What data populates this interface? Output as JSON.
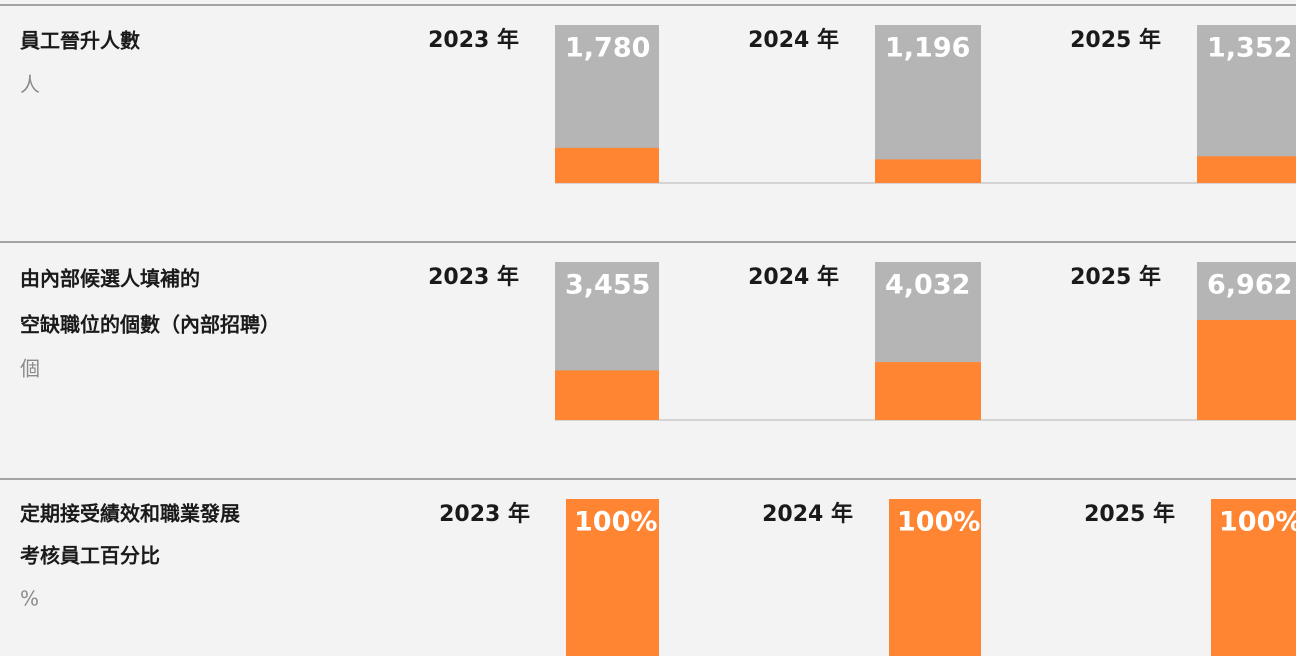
{
  "chart_data": [
    {
      "type": "bar",
      "title": [
        "員工晉升人數"
      ],
      "unit": "人",
      "categories": [
        "2023 年",
        "2024 年",
        "2025 年"
      ],
      "values": [
        1780,
        1196,
        1352
      ],
      "value_labels": [
        "1,780",
        "1,196",
        "1,352"
      ],
      "ylim": [
        0,
        8000
      ],
      "color": "#ff8533",
      "track_color": "#b4b5b4"
    },
    {
      "type": "bar",
      "title": [
        "由內部候選人填補的",
        "空缺職位的個數（內部招聘）"
      ],
      "unit": "個",
      "categories": [
        "2023 年",
        "2024 年",
        "2025 年"
      ],
      "values": [
        3455,
        4032,
        6962
      ],
      "value_labels": [
        "3,455",
        "4,032",
        "6,962"
      ],
      "ylim": [
        0,
        11000
      ],
      "color": "#ff8533",
      "track_color": "#b4b5b4"
    },
    {
      "type": "bar",
      "title": [
        "定期接受績效和職業發展",
        "考核員工百分比"
      ],
      "unit": "%",
      "categories": [
        "2023 年",
        "2024 年",
        "2025 年"
      ],
      "values": [
        100,
        100,
        100
      ],
      "value_labels": [
        "100%",
        "100%",
        "100%"
      ],
      "ylim": [
        0,
        100
      ],
      "color": "#ff8533",
      "track_color": "#b4b5b4"
    }
  ]
}
